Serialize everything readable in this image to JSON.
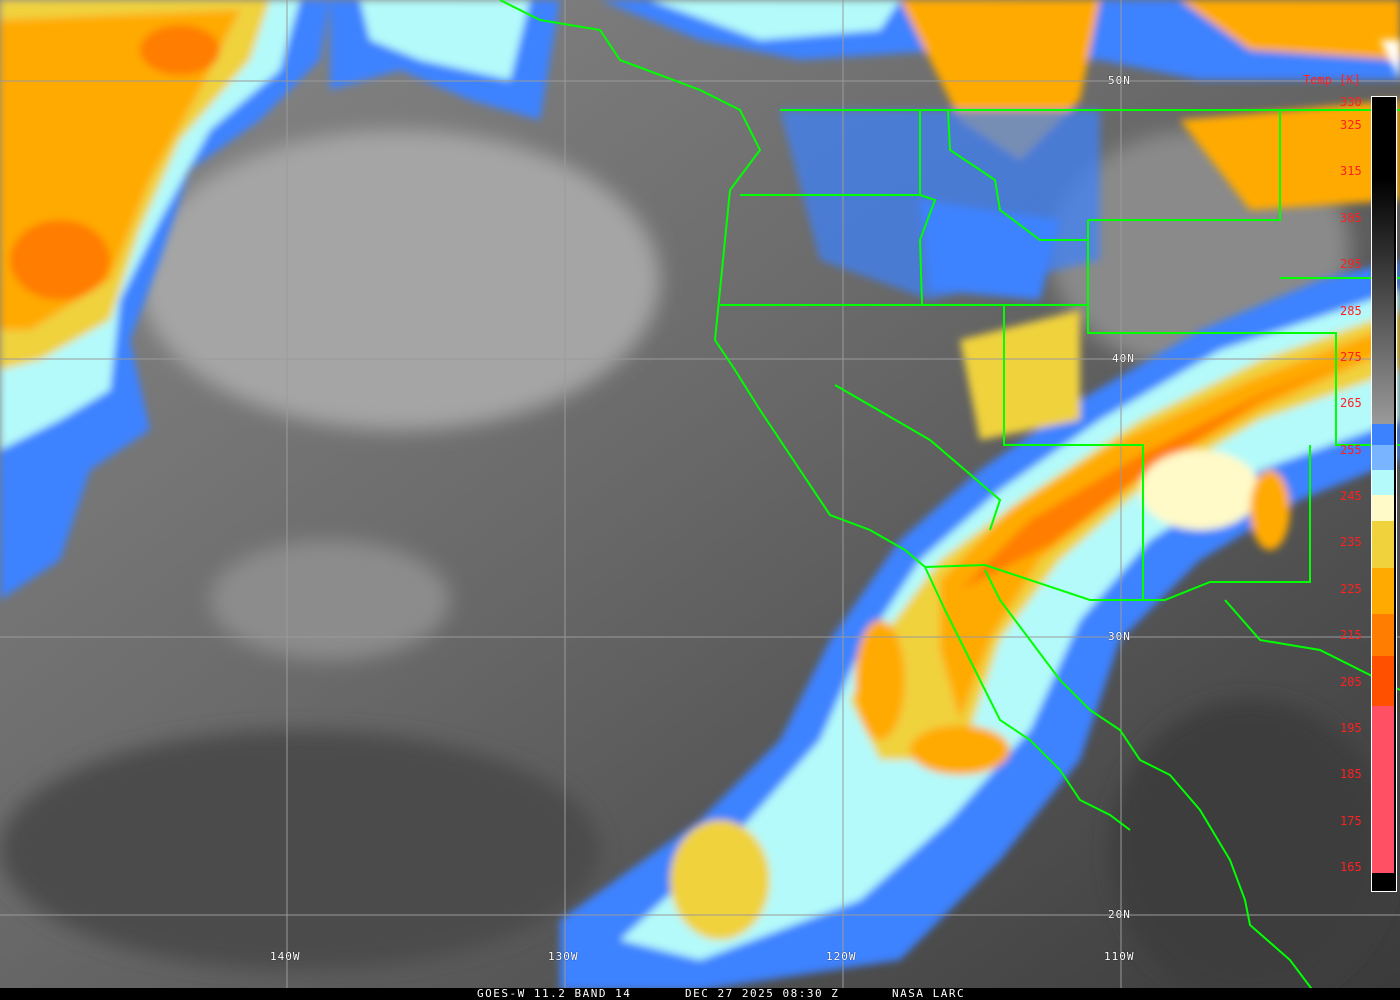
{
  "footer": {
    "satellite": "GOES-W 11.2 BAND 14",
    "datetime": "DEC 27 2025 08:30 Z",
    "source": "NASA LARC"
  },
  "grid": {
    "latitudes": [
      "50N",
      "40N",
      "30N",
      "20N"
    ],
    "longitudes": [
      "140W",
      "130W",
      "120W",
      "110W"
    ]
  },
  "colorbar": {
    "title": "Temp [K]",
    "ticks": [
      "330",
      "325",
      "315",
      "305",
      "295",
      "285",
      "275",
      "265",
      "255",
      "245",
      "235",
      "225",
      "215",
      "205",
      "195",
      "185",
      "175",
      "165"
    ],
    "colors": {
      "warm_top": "#000000",
      "warm_bottom": "#9a9a9a",
      "blue": "#3c82ff",
      "light_blue": "#78b4ff",
      "cyan": "#b4fafa",
      "pale_yellow": "#fffac8",
      "yellow": "#f0d23c",
      "orange": "#ffaa00",
      "dark_orange": "#ff7d00",
      "red_orange": "#ff5000",
      "pink": "#ff5064"
    }
  },
  "overlay_colors": {
    "borders": "#00ff00",
    "grid": "#9a9a9a",
    "label_text": "#ff2020"
  }
}
